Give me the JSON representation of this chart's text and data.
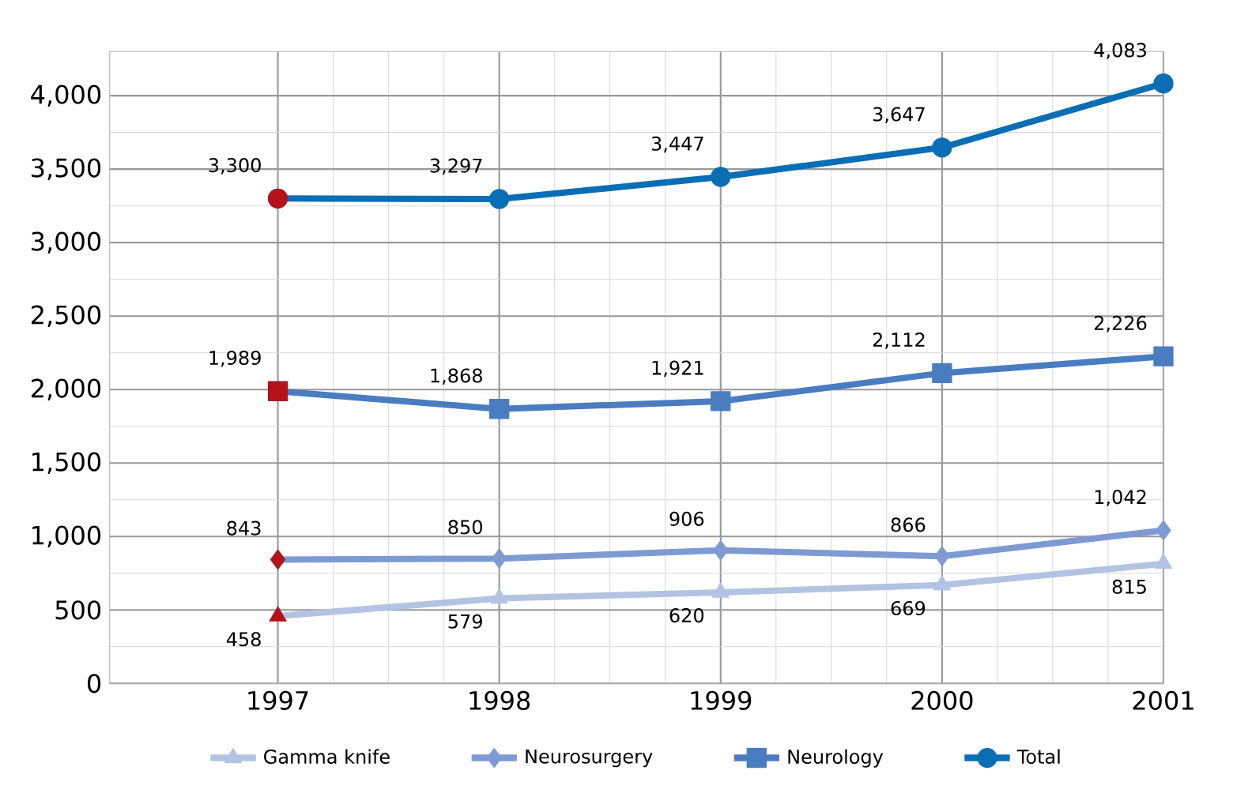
{
  "chart_data": {
    "type": "line",
    "categories": [
      "1997",
      "1998",
      "1999",
      "2000",
      "2001"
    ],
    "series": [
      {
        "name": "Gamma knife",
        "color": "#b3c3e3",
        "marker": "triangle",
        "colors": [
          "#b5121b",
          "#b3c3e3",
          "#b3c3e3",
          "#b3c3e3",
          "#b3c3e3"
        ],
        "values": [
          458,
          579,
          620,
          669,
          815
        ],
        "value_labels": [
          "458",
          "579",
          "620",
          "669",
          "815"
        ]
      },
      {
        "name": "Neurosurgery",
        "color": "#7d9bd2",
        "marker": "diamond",
        "colors": [
          "#b5121b",
          "#7d9bd2",
          "#7d9bd2",
          "#7d9bd2",
          "#7d9bd2"
        ],
        "values": [
          843,
          850,
          906,
          866,
          1042
        ],
        "value_labels": [
          "843",
          "850",
          "906",
          "866",
          "1,042"
        ]
      },
      {
        "name": "Neurology",
        "color": "#4a7cc0",
        "marker": "square",
        "colors": [
          "#b5121b",
          "#4a7cc0",
          "#4a7cc0",
          "#4a7cc0",
          "#4a7cc0"
        ],
        "values": [
          1989,
          1868,
          1921,
          2112,
          2226
        ],
        "value_labels": [
          "1,989",
          "1,868",
          "1,921",
          "2,112",
          "2,226"
        ]
      },
      {
        "name": "Total",
        "color": "#0a6eb4",
        "marker": "circle",
        "colors": [
          "#b5121b",
          "#0a6eb4",
          "#0a6eb4",
          "#0a6eb4",
          "#0a6eb4"
        ],
        "values": [
          3300,
          3297,
          3447,
          3647,
          4083
        ],
        "value_labels": [
          "3,300",
          "3,297",
          "3,447",
          "3,647",
          "4,083"
        ]
      }
    ],
    "ylim": [
      0,
      4300
    ],
    "yticks": [
      {
        "value": 0,
        "label": "0"
      },
      {
        "value": 500,
        "label": "500"
      },
      {
        "value": 1000,
        "label": "1,000"
      },
      {
        "value": 1500,
        "label": "1,500"
      },
      {
        "value": 2000,
        "label": "2,000"
      },
      {
        "value": 2500,
        "label": "2,500"
      },
      {
        "value": 3000,
        "label": "3,000"
      },
      {
        "value": 3500,
        "label": "3,500"
      },
      {
        "value": 4000,
        "label": "4,000"
      }
    ],
    "grid": true,
    "legend": "bottom",
    "line_style": "solid"
  }
}
